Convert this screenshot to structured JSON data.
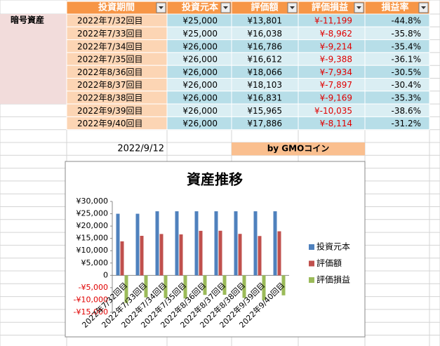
{
  "table": {
    "row_label": "暗号資産",
    "header": [
      "投資期間",
      "投資元本",
      "評価額",
      "評価損益",
      "損益率"
    ],
    "rows": [
      [
        "2022年7/32回目",
        "¥25,000",
        "¥13,801",
        "¥-11,199",
        "-44.8%"
      ],
      [
        "2022年7/33回目",
        "¥25,000",
        "¥16,038",
        "¥-8,962",
        "-35.8%"
      ],
      [
        "2022年7/34回目",
        "¥26,000",
        "¥16,786",
        "¥-9,214",
        "-35.4%"
      ],
      [
        "2022年7/35回目",
        "¥26,000",
        "¥16,612",
        "¥-9,388",
        "-36.1%"
      ],
      [
        "2022年8/36回目",
        "¥26,000",
        "¥18,066",
        "¥-7,934",
        "-30.5%"
      ],
      [
        "2022年8/37回目",
        "¥26,000",
        "¥18,103",
        "¥-7,897",
        "-30.4%"
      ],
      [
        "2022年8/38回目",
        "¥26,000",
        "¥16,831",
        "¥-9,169",
        "-35.3%"
      ],
      [
        "2022年9/39回目",
        "¥26,000",
        "¥15,965",
        "¥-10,035",
        "-38.6%"
      ],
      [
        "2022年9/40回目",
        "¥26,000",
        "¥17,886",
        "¥-8,114",
        "-31.2%"
      ]
    ],
    "date": "2022/9/12",
    "credit": "by  GMOコイン"
  },
  "chart_data": {
    "type": "bar",
    "title": "資産推移",
    "categories": [
      "2022年7/32回目",
      "2022年7/33回目",
      "2022年7/34回目",
      "2022年7/35回目",
      "2022年8/36回目",
      "2022年8/37回目",
      "2022年8/38回目",
      "2022年9/39回目",
      "2022年9/40回目"
    ],
    "series": [
      {
        "name": "投資元本",
        "color": "#4f81bd",
        "values": [
          25000,
          25000,
          26000,
          26000,
          26000,
          26000,
          26000,
          26000,
          26000
        ]
      },
      {
        "name": "評価額",
        "color": "#c0504d",
        "values": [
          13801,
          16038,
          16786,
          16612,
          18066,
          18103,
          16831,
          15965,
          17886
        ]
      },
      {
        "name": "評価損益",
        "color": "#9bbb59",
        "values": [
          -11199,
          -8962,
          -9214,
          -9388,
          -7934,
          -7897,
          -9169,
          -10035,
          -8114
        ]
      }
    ],
    "ylim": [
      -15000,
      30000
    ],
    "yticks": [
      {
        "value": 30000,
        "label": "¥30,000"
      },
      {
        "value": 25000,
        "label": "¥25,000"
      },
      {
        "value": 20000,
        "label": "¥20,000"
      },
      {
        "value": 15000,
        "label": "¥15,000"
      },
      {
        "value": 10000,
        "label": "¥10,000"
      },
      {
        "value": 5000,
        "label": "¥5,000"
      },
      0,
      {
        "value": -5000,
        "label": "-¥5,000"
      },
      {
        "value": -10000,
        "label": "-¥10,000"
      },
      {
        "value": -15000,
        "label": "-¥15,000"
      }
    ],
    "legend": "right"
  }
}
